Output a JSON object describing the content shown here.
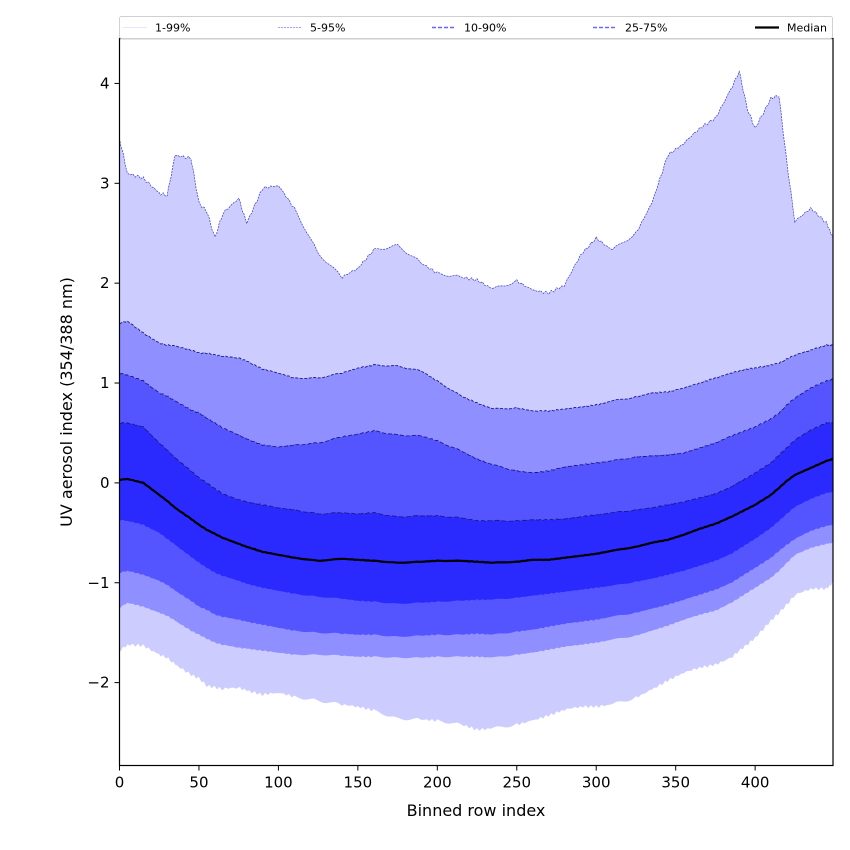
{
  "chart_data": {
    "type": "area",
    "title": "",
    "xlabel": "Binned row index",
    "ylabel": "UV aerosol index (354/388 nm)",
    "xlim": [
      0,
      449
    ],
    "ylim": [
      -2.83,
      4.45
    ],
    "xticks": [
      0,
      50,
      100,
      150,
      200,
      250,
      300,
      350,
      400
    ],
    "yticks": [
      -2,
      -1,
      0,
      1,
      2,
      3,
      4
    ],
    "grid": false,
    "legend": {
      "placement": "top",
      "entries": [
        {
          "label": "1-99%",
          "color": "#ccccff",
          "style": "solid-thin"
        },
        {
          "label": "5-95%",
          "color": "#8080ff",
          "style": "dashed-thin"
        },
        {
          "label": "10-90%",
          "color": "#6666ff",
          "style": "dashed"
        },
        {
          "label": "25-75%",
          "color": "#6a6aff",
          "style": "dashed"
        },
        {
          "label": "Median",
          "color": "#000000",
          "style": "solid-thick"
        }
      ]
    },
    "x": [
      0,
      5,
      15,
      25,
      30,
      35,
      45,
      50,
      55,
      60,
      65,
      75,
      80,
      90,
      100,
      110,
      125,
      140,
      150,
      160,
      175,
      190,
      200,
      215,
      225,
      235,
      250,
      260,
      270,
      280,
      290,
      300,
      310,
      325,
      335,
      345,
      355,
      365,
      375,
      385,
      390,
      395,
      400,
      410,
      415,
      420,
      425,
      435,
      445,
      449
    ],
    "series": [
      {
        "name": "1%",
        "values": [
          -1.68,
          -1.62,
          -1.63,
          -1.72,
          -1.75,
          -1.82,
          -1.92,
          -1.96,
          -2.03,
          -2.05,
          -2.06,
          -2.05,
          -2.08,
          -2.12,
          -2.1,
          -2.14,
          -2.18,
          -2.22,
          -2.24,
          -2.28,
          -2.36,
          -2.37,
          -2.38,
          -2.42,
          -2.47,
          -2.46,
          -2.42,
          -2.38,
          -2.33,
          -2.27,
          -2.24,
          -2.24,
          -2.22,
          -2.15,
          -2.07,
          -1.98,
          -1.9,
          -1.85,
          -1.82,
          -1.75,
          -1.68,
          -1.62,
          -1.55,
          -1.38,
          -1.3,
          -1.22,
          -1.12,
          -1.06,
          -1.06,
          -1.0
        ]
      },
      {
        "name": "5%",
        "values": [
          -1.25,
          -1.2,
          -1.24,
          -1.3,
          -1.33,
          -1.38,
          -1.48,
          -1.52,
          -1.56,
          -1.6,
          -1.62,
          -1.65,
          -1.66,
          -1.68,
          -1.7,
          -1.72,
          -1.72,
          -1.73,
          -1.74,
          -1.74,
          -1.75,
          -1.75,
          -1.74,
          -1.74,
          -1.74,
          -1.75,
          -1.72,
          -1.7,
          -1.67,
          -1.64,
          -1.62,
          -1.6,
          -1.57,
          -1.53,
          -1.48,
          -1.43,
          -1.37,
          -1.32,
          -1.28,
          -1.2,
          -1.15,
          -1.1,
          -1.05,
          -0.95,
          -0.88,
          -0.8,
          -0.72,
          -0.65,
          -0.61,
          -0.6
        ]
      },
      {
        "name": "10%",
        "values": [
          -0.9,
          -0.88,
          -0.92,
          -0.98,
          -1.02,
          -1.08,
          -1.18,
          -1.24,
          -1.27,
          -1.32,
          -1.34,
          -1.37,
          -1.39,
          -1.42,
          -1.45,
          -1.48,
          -1.5,
          -1.51,
          -1.52,
          -1.52,
          -1.54,
          -1.53,
          -1.52,
          -1.52,
          -1.51,
          -1.52,
          -1.49,
          -1.47,
          -1.44,
          -1.41,
          -1.39,
          -1.37,
          -1.34,
          -1.3,
          -1.26,
          -1.22,
          -1.17,
          -1.12,
          -1.07,
          -1.0,
          -0.95,
          -0.9,
          -0.85,
          -0.75,
          -0.68,
          -0.62,
          -0.56,
          -0.48,
          -0.43,
          -0.42
        ]
      },
      {
        "name": "25%",
        "values": [
          -0.37,
          -0.38,
          -0.42,
          -0.5,
          -0.56,
          -0.62,
          -0.74,
          -0.8,
          -0.85,
          -0.9,
          -0.93,
          -0.98,
          -1.01,
          -1.05,
          -1.08,
          -1.11,
          -1.14,
          -1.16,
          -1.18,
          -1.19,
          -1.21,
          -1.2,
          -1.19,
          -1.18,
          -1.17,
          -1.17,
          -1.15,
          -1.13,
          -1.11,
          -1.09,
          -1.07,
          -1.05,
          -1.03,
          -0.99,
          -0.96,
          -0.92,
          -0.88,
          -0.83,
          -0.78,
          -0.71,
          -0.66,
          -0.61,
          -0.56,
          -0.45,
          -0.38,
          -0.31,
          -0.24,
          -0.16,
          -0.1,
          -0.09
        ]
      },
      {
        "name": "Median",
        "values": [
          0.03,
          0.04,
          0.0,
          -0.12,
          -0.18,
          -0.25,
          -0.36,
          -0.42,
          -0.47,
          -0.51,
          -0.55,
          -0.61,
          -0.64,
          -0.69,
          -0.72,
          -0.75,
          -0.78,
          -0.76,
          -0.77,
          -0.78,
          -0.8,
          -0.79,
          -0.78,
          -0.78,
          -0.79,
          -0.8,
          -0.79,
          -0.77,
          -0.77,
          -0.75,
          -0.73,
          -0.71,
          -0.68,
          -0.64,
          -0.6,
          -0.57,
          -0.52,
          -0.46,
          -0.41,
          -0.34,
          -0.3,
          -0.26,
          -0.22,
          -0.12,
          -0.05,
          0.02,
          0.08,
          0.15,
          0.22,
          0.24
        ]
      },
      {
        "name": "75%",
        "values": [
          0.6,
          0.6,
          0.56,
          0.4,
          0.33,
          0.25,
          0.12,
          0.05,
          0.0,
          -0.06,
          -0.11,
          -0.17,
          -0.19,
          -0.22,
          -0.25,
          -0.27,
          -0.31,
          -0.3,
          -0.31,
          -0.3,
          -0.34,
          -0.33,
          -0.33,
          -0.35,
          -0.38,
          -0.38,
          -0.38,
          -0.37,
          -0.37,
          -0.36,
          -0.34,
          -0.32,
          -0.3,
          -0.27,
          -0.25,
          -0.22,
          -0.19,
          -0.15,
          -0.11,
          -0.04,
          0.01,
          0.05,
          0.1,
          0.2,
          0.28,
          0.35,
          0.43,
          0.53,
          0.6,
          0.6
        ]
      },
      {
        "name": "90%",
        "values": [
          1.1,
          1.08,
          1.02,
          0.9,
          0.87,
          0.82,
          0.73,
          0.7,
          0.65,
          0.6,
          0.55,
          0.48,
          0.44,
          0.38,
          0.36,
          0.38,
          0.4,
          0.46,
          0.49,
          0.52,
          0.48,
          0.47,
          0.42,
          0.32,
          0.24,
          0.18,
          0.12,
          0.1,
          0.12,
          0.16,
          0.18,
          0.2,
          0.22,
          0.26,
          0.27,
          0.28,
          0.3,
          0.35,
          0.4,
          0.47,
          0.5,
          0.53,
          0.56,
          0.64,
          0.7,
          0.78,
          0.85,
          0.95,
          1.02,
          1.04
        ]
      },
      {
        "name": "95%",
        "values": [
          1.6,
          1.62,
          1.5,
          1.4,
          1.38,
          1.37,
          1.33,
          1.3,
          1.3,
          1.28,
          1.27,
          1.25,
          1.22,
          1.14,
          1.1,
          1.05,
          1.05,
          1.1,
          1.15,
          1.18,
          1.17,
          1.12,
          1.02,
          0.87,
          0.8,
          0.74,
          0.75,
          0.72,
          0.72,
          0.74,
          0.76,
          0.78,
          0.82,
          0.86,
          0.9,
          0.91,
          0.95,
          1.0,
          1.05,
          1.1,
          1.12,
          1.14,
          1.15,
          1.18,
          1.2,
          1.24,
          1.28,
          1.33,
          1.38,
          1.38
        ]
      },
      {
        "name": "99%",
        "values": [
          3.45,
          3.1,
          3.05,
          2.9,
          2.88,
          3.28,
          3.25,
          2.8,
          2.72,
          2.45,
          2.7,
          2.85,
          2.6,
          2.95,
          2.98,
          2.75,
          2.3,
          2.06,
          2.15,
          2.33,
          2.38,
          2.2,
          2.1,
          2.06,
          2.03,
          1.94,
          2.02,
          1.93,
          1.9,
          1.98,
          2.28,
          2.45,
          2.33,
          2.5,
          2.8,
          3.28,
          3.4,
          3.55,
          3.65,
          3.95,
          4.12,
          3.75,
          3.55,
          3.85,
          3.88,
          3.2,
          2.62,
          2.75,
          2.6,
          2.45
        ]
      }
    ],
    "bands": [
      {
        "name": "1-99%",
        "lower": "1%",
        "upper": "99%",
        "fill": "#ccccff"
      },
      {
        "name": "5-95%",
        "lower": "5%",
        "upper": "95%",
        "fill": "#8f8fff"
      },
      {
        "name": "10-90%",
        "lower": "10%",
        "upper": "90%",
        "fill": "#5555ff"
      },
      {
        "name": "25-75%",
        "lower": "25%",
        "upper": "75%",
        "fill": "#2a2aff"
      }
    ],
    "median_color": "#000000",
    "boundary_line_color": "#1a1a8c"
  }
}
